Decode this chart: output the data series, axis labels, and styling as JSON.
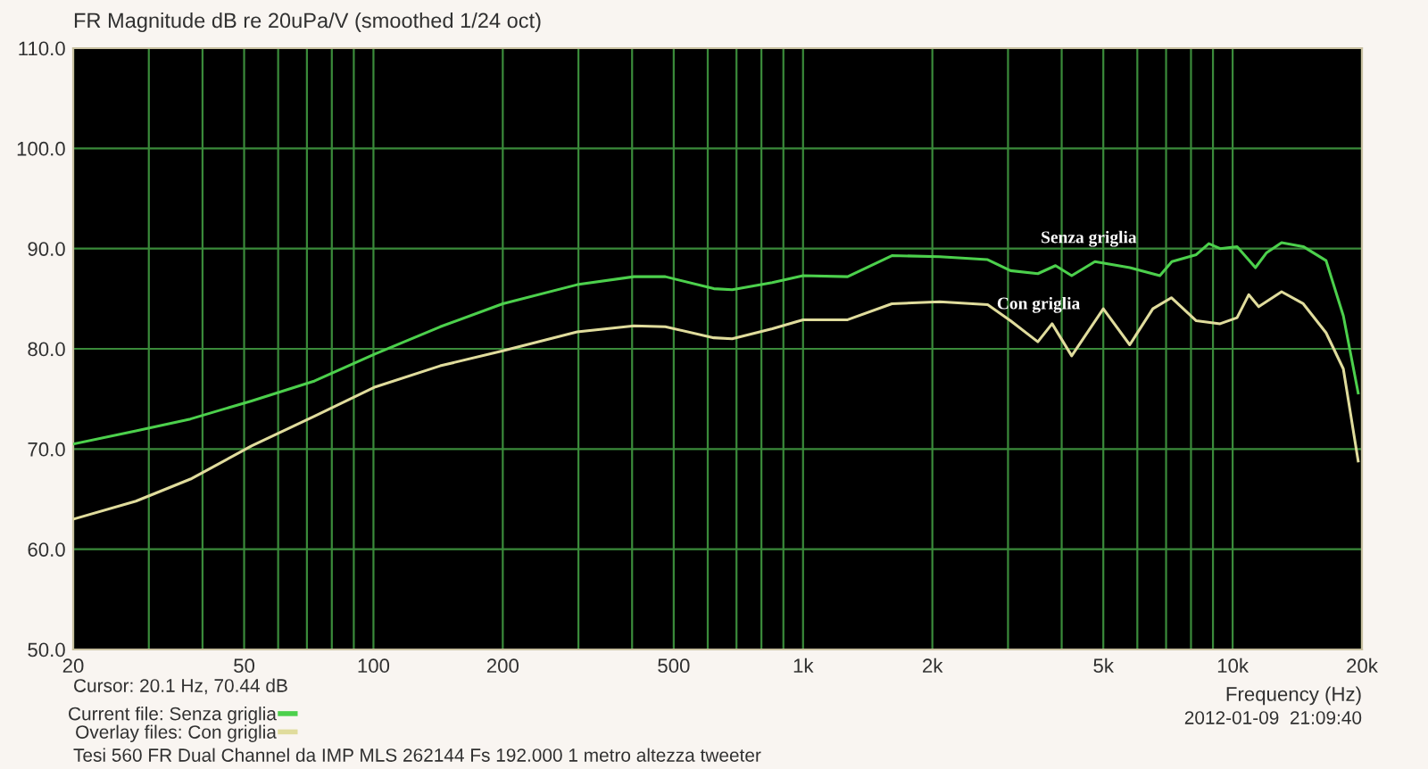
{
  "chart_data": {
    "type": "line",
    "title": "FR Magnitude dB re 20uPa/V (smoothed 1/24 oct)",
    "xlabel": "Frequency (Hz)",
    "log": "x",
    "grid": true,
    "legend": "bottom left",
    "marker": "none",
    "line_style": "solid",
    "xlim": [
      20,
      20000
    ],
    "ylim": [
      50,
      110
    ],
    "xticks": [
      20,
      {
        "value": 30,
        "label": null
      },
      {
        "value": 40,
        "label": null
      },
      50,
      {
        "value": 60,
        "label": null
      },
      {
        "value": 70,
        "label": null
      },
      {
        "value": 80,
        "label": null
      },
      {
        "value": 90,
        "label": null
      },
      100,
      200,
      {
        "value": 300,
        "label": null
      },
      {
        "value": 400,
        "label": null
      },
      500,
      {
        "value": 600,
        "label": null
      },
      {
        "value": 700,
        "label": null
      },
      {
        "value": 800,
        "label": null
      },
      {
        "value": 900,
        "label": null
      },
      {
        "value": 1000,
        "label": "1k"
      },
      {
        "value": 2000,
        "label": "2k"
      },
      {
        "value": 3000,
        "label": null
      },
      {
        "value": 4000,
        "label": null
      },
      {
        "value": 5000,
        "label": "5k"
      },
      {
        "value": 6000,
        "label": null
      },
      {
        "value": 7000,
        "label": null
      },
      {
        "value": 8000,
        "label": null
      },
      {
        "value": 9000,
        "label": null
      },
      {
        "value": 10000,
        "label": "10k"
      },
      {
        "value": 20000,
        "label": "20k"
      }
    ],
    "yticks": [
      {
        "value": 50,
        "label": "50.0"
      },
      {
        "value": 60,
        "label": "60.0"
      },
      {
        "value": 70,
        "label": "70.0"
      },
      {
        "value": 80,
        "label": "80.0"
      },
      {
        "value": 90,
        "label": "90.0"
      },
      {
        "value": 100,
        "label": "100.0"
      },
      {
        "value": 110,
        "label": "110.0"
      }
    ],
    "series": [
      {
        "name": "Current file: Senza griglia",
        "color": "#4cd04c",
        "x": [
          20,
          28,
          37.5,
          52,
          73,
          101,
          143,
          200,
          298,
          404,
          478,
          620,
          684,
          848,
          1000,
          1270,
          1610,
          2080,
          2690,
          3040,
          3520,
          3870,
          4220,
          4780,
          5760,
          6770,
          7220,
          8230,
          8800,
          9350,
          10240,
          11300,
          12000,
          13000,
          14600,
          16500,
          18100,
          19600
        ],
        "values": [
          70.5,
          71.8,
          73.0,
          74.8,
          76.8,
          79.5,
          82.2,
          84.5,
          86.4,
          87.2,
          87.2,
          86.0,
          85.9,
          86.6,
          87.3,
          87.2,
          89.3,
          89.2,
          88.9,
          87.8,
          87.5,
          88.3,
          87.3,
          88.7,
          88.1,
          87.3,
          88.7,
          89.4,
          90.5,
          90.0,
          90.2,
          88.1,
          89.6,
          90.6,
          90.2,
          88.8,
          83.3,
          75.6
        ]
      },
      {
        "name": "Overlay files: Con griglia",
        "color": "#e0dc9c",
        "x": [
          20,
          28,
          37.5,
          52,
          73,
          101,
          143,
          200,
          298,
          404,
          478,
          620,
          684,
          848,
          1000,
          1270,
          1610,
          2080,
          2690,
          3040,
          3520,
          3800,
          4220,
          5000,
          5760,
          6520,
          7200,
          8230,
          9350,
          10240,
          10900,
          11500,
          13000,
          14600,
          16500,
          18100,
          19600
        ],
        "values": [
          63.0,
          64.8,
          67.0,
          70.3,
          73.3,
          76.2,
          78.3,
          79.8,
          81.7,
          82.3,
          82.2,
          81.1,
          81.0,
          82.0,
          82.9,
          82.9,
          84.5,
          84.7,
          84.4,
          82.8,
          80.7,
          82.5,
          79.3,
          84.0,
          80.4,
          84.0,
          85.1,
          82.8,
          82.5,
          83.1,
          85.4,
          84.2,
          85.7,
          84.5,
          81.6,
          78.0,
          68.8
        ]
      }
    ],
    "annotations": [
      "Senza griglia",
      "Con griglia",
      "Cursor: 20.1 Hz, 70.44 dB",
      "2012-01-09  21:09:40",
      "Tesi 560 FR Dual Channel da IMP MLS 262144 Fs 192.000 1 metro altezza tweeter"
    ]
  }
}
